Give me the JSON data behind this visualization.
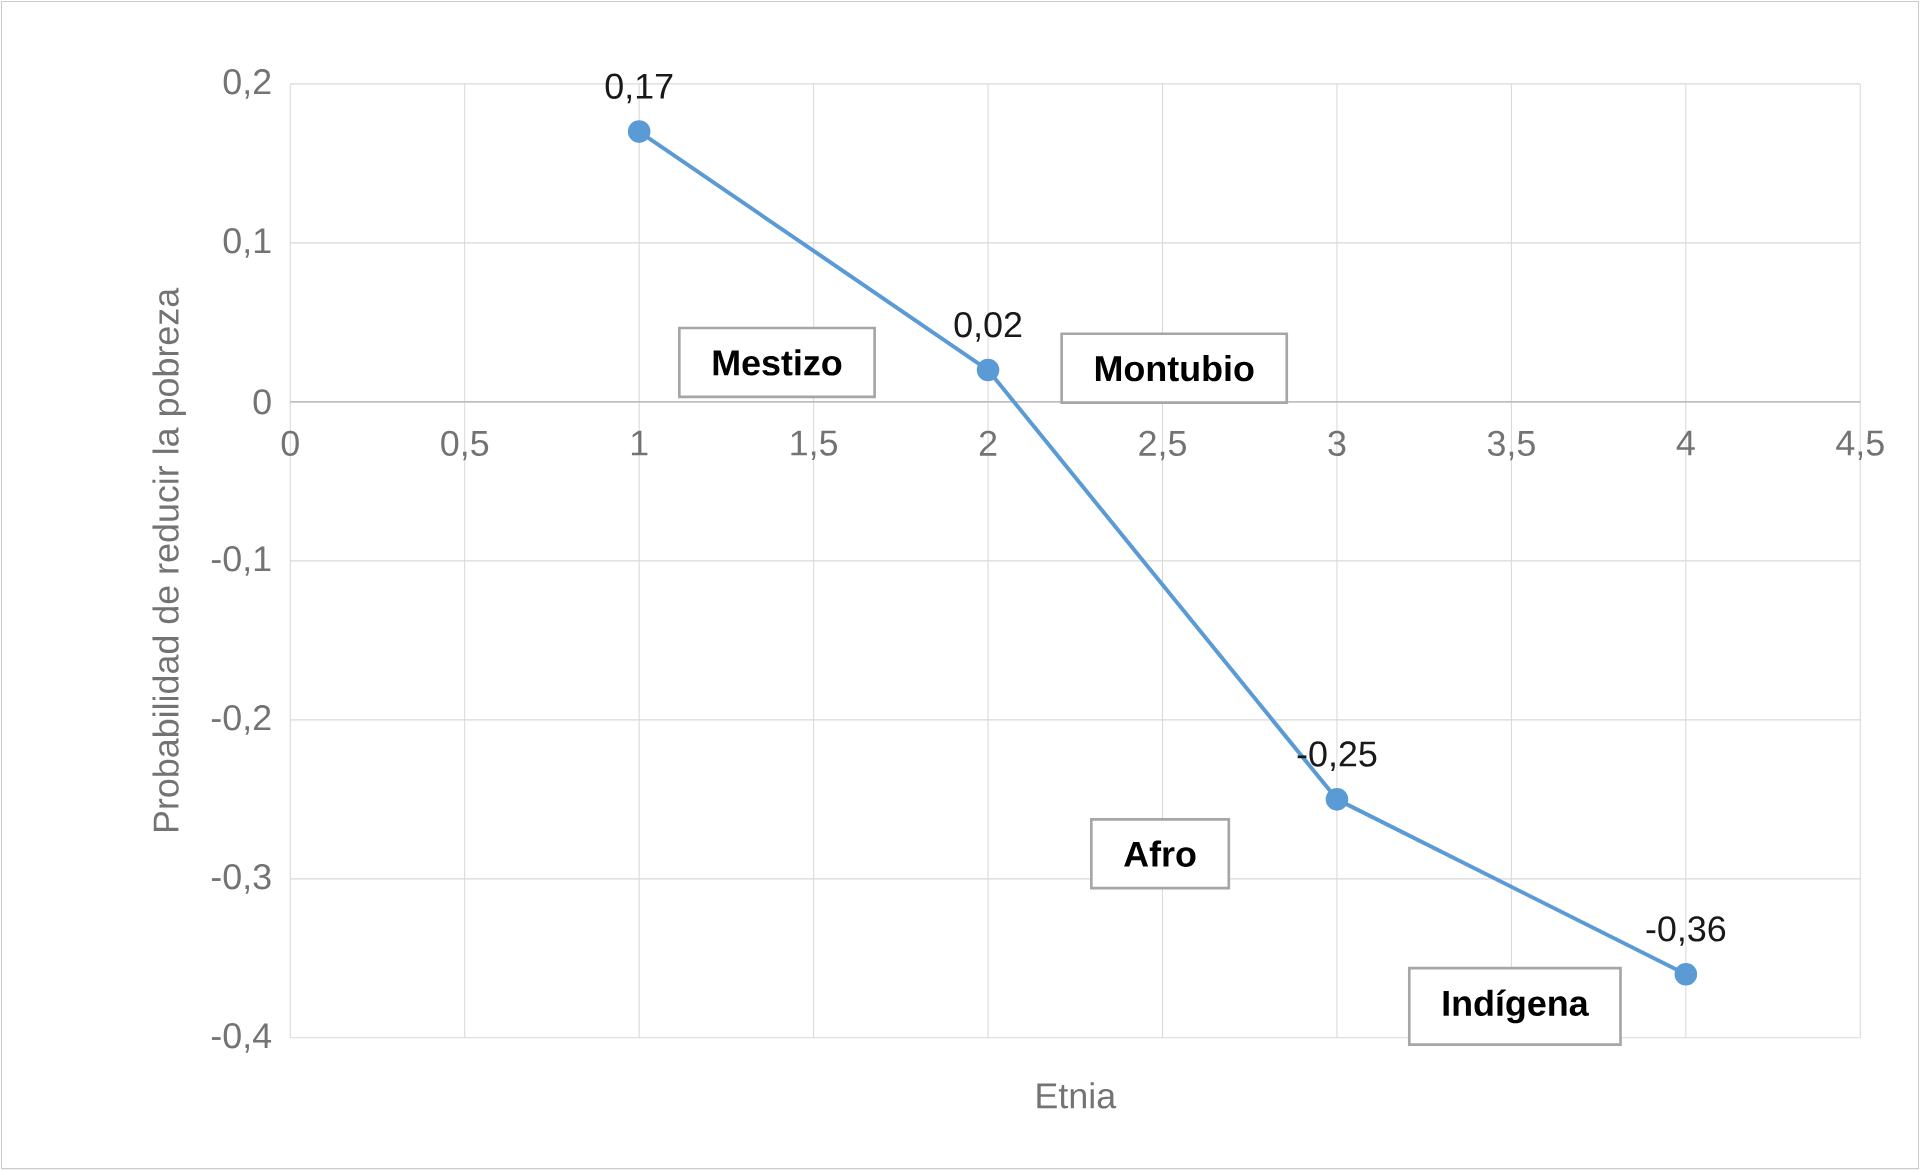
{
  "chart_data": {
    "type": "line",
    "xlabel": "Etnia",
    "ylabel": "Probabilidad de reducir la pobreza",
    "x": [
      1,
      2,
      3,
      4
    ],
    "series": [
      {
        "color": "#5b9bd5",
        "values": [
          0.17,
          0.02,
          -0.25,
          -0.36
        ],
        "value_labels": [
          "0,17",
          "0,02",
          "-0,25",
          "-0,36"
        ]
      }
    ],
    "xlim": [
      0,
      4.5
    ],
    "xticks": [
      0,
      {
        "value": 0.5,
        "label": "0,5"
      },
      1,
      {
        "value": 1.5,
        "label": "1,5"
      },
      2,
      {
        "value": 2.5,
        "label": "2,5"
      },
      3,
      {
        "value": 3.5,
        "label": "3,5"
      },
      4,
      {
        "value": 4.5,
        "label": "4,5"
      }
    ],
    "ylim": [
      -0.4,
      0.2
    ],
    "yticks": [
      {
        "value": -0.4,
        "label": "-0,4"
      },
      {
        "value": -0.3,
        "label": "-0,3"
      },
      {
        "value": -0.2,
        "label": "-0,2"
      },
      {
        "value": -0.1,
        "label": "-0,1"
      },
      0,
      {
        "value": 0.1,
        "label": "0,1"
      },
      {
        "value": 0.2,
        "label": "0,2"
      }
    ],
    "grid": true,
    "marker": "circle",
    "line_style": "solid",
    "annotations": [
      "Mestizo",
      "Montubio",
      "Afro",
      "Indígena"
    ]
  }
}
